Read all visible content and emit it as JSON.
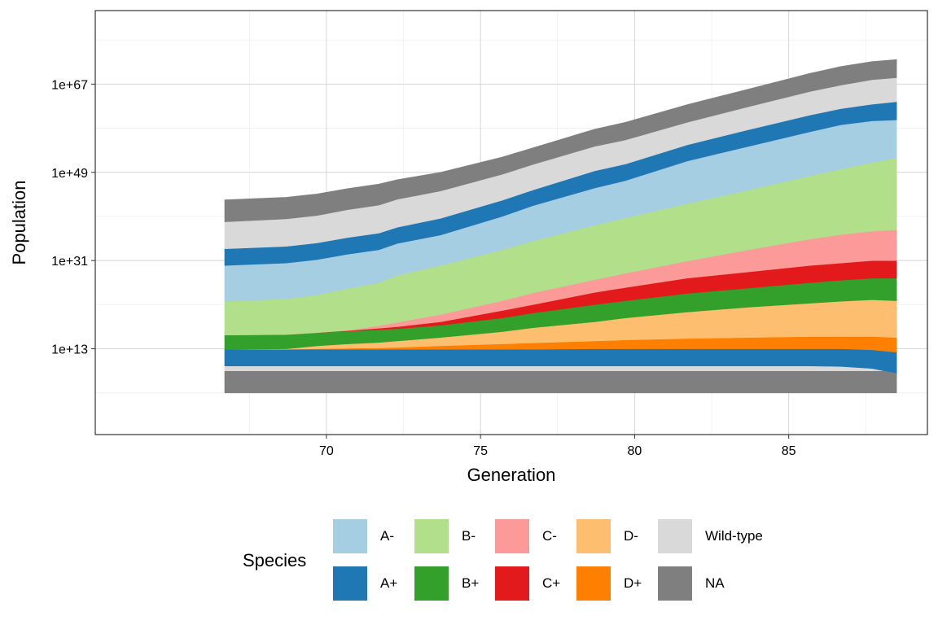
{
  "chart_data": {
    "type": "area",
    "stacked": true,
    "xlabel": "Generation",
    "ylabel": "Population",
    "x_ticks": [
      70,
      75,
      80,
      85
    ],
    "y_scale": "log10",
    "y_ticks": [
      "1e+13",
      "1e+31",
      "1e+49",
      "1e+67"
    ],
    "y_tick_exponents": [
      13,
      31,
      49,
      67
    ],
    "xlim": [
      62.5,
      89.5
    ],
    "ylim_log10": [
      -4.5,
      82
    ],
    "grid": true,
    "legend_title": "Species",
    "legend_position": "bottom",
    "x": [
      66.7,
      68.7,
      69.7,
      70.7,
      71.7,
      72.3,
      73.7,
      75.7,
      76.7,
      78.7,
      79.7,
      81.7,
      83.7,
      85.7,
      86.7,
      87.7,
      88.5
    ],
    "boundaries_log10": [
      {
        "from": "NA",
        "to": "Wild-type",
        "values": [
          8.5,
          8.5,
          8.5,
          8.5,
          8.5,
          8.5,
          8.5,
          8.5,
          8.5,
          8.5,
          8.5,
          8.5,
          8.5,
          8.5,
          8.5,
          8.5,
          8.5
        ]
      },
      {
        "from": "Wild-type",
        "to": "A+",
        "values": [
          9.5,
          9.5,
          9.5,
          9.5,
          9.5,
          9.5,
          9.5,
          9.5,
          9.5,
          9.5,
          9.5,
          9.5,
          9.5,
          9.5,
          9.4,
          9.0,
          8.0
        ]
      },
      {
        "from": "A+",
        "to": "D+",
        "values": [
          12.9,
          12.9,
          12.9,
          12.9,
          12.9,
          12.9,
          12.9,
          12.9,
          12.9,
          13.0,
          13.0,
          13.0,
          13.0,
          13.0,
          13.0,
          12.8,
          12.3
        ]
      },
      {
        "from": "D+",
        "to": "D-",
        "values": [
          12.9,
          12.9,
          13.0,
          13.1,
          13.2,
          13.3,
          13.6,
          14.0,
          14.2,
          14.6,
          14.8,
          15.1,
          15.3,
          15.5,
          15.5,
          15.5,
          15.3
        ]
      },
      {
        "from": "D-",
        "to": "B+",
        "values": [
          12.9,
          13.0,
          13.6,
          14.0,
          14.3,
          14.6,
          15.3,
          16.5,
          17.3,
          18.5,
          19.3,
          20.5,
          21.5,
          22.3,
          22.7,
          23.0,
          22.8
        ]
      },
      {
        "from": "B+",
        "to": "C+",
        "values": [
          15.8,
          15.9,
          16.3,
          16.6,
          16.9,
          17.1,
          17.8,
          19.3,
          20.3,
          22.0,
          22.8,
          24.3,
          25.4,
          26.5,
          27.0,
          27.4,
          27.4
        ]
      },
      {
        "from": "C+",
        "to": "C-",
        "values": [
          15.8,
          15.9,
          16.3,
          16.7,
          17.2,
          17.5,
          18.5,
          20.8,
          22.0,
          24.5,
          25.5,
          27.4,
          28.7,
          30.0,
          30.5,
          31.0,
          31.0
        ]
      },
      {
        "from": "C-",
        "to": "B-",
        "values": [
          15.8,
          15.9,
          16.3,
          16.8,
          17.7,
          18.4,
          20.0,
          22.8,
          24.4,
          27.1,
          28.4,
          30.9,
          33.2,
          35.4,
          36.3,
          37.0,
          37.3
        ]
      },
      {
        "from": "B-",
        "to": "A-",
        "values": [
          22.7,
          23.2,
          24.0,
          25.3,
          26.5,
          28.0,
          30.0,
          33.2,
          35.0,
          38.2,
          39.7,
          42.6,
          45.4,
          48.3,
          49.7,
          51.0,
          51.9
        ]
      },
      {
        "from": "A-",
        "to": "A+",
        "values": [
          30.0,
          30.5,
          31.2,
          32.3,
          33.2,
          34.5,
          36.2,
          40.0,
          42.2,
          45.8,
          47.3,
          51.3,
          54.3,
          57.3,
          58.7,
          59.5,
          59.7
        ]
      },
      {
        "from": "A+",
        "to": "Wild-type",
        "values": [
          33.4,
          33.9,
          34.6,
          35.7,
          36.6,
          37.8,
          39.6,
          43.3,
          45.4,
          49.3,
          50.7,
          54.6,
          57.7,
          60.7,
          62.0,
          62.9,
          63.4
        ]
      },
      {
        "from": "Wild-type",
        "to": "NA",
        "values": [
          38.9,
          39.5,
          40.2,
          41.4,
          42.3,
          43.5,
          45.2,
          48.6,
          50.6,
          54.3,
          55.6,
          59.2,
          62.4,
          65.5,
          66.8,
          67.9,
          68.3
        ]
      },
      {
        "from": "NA",
        "to": "top",
        "values": [
          43.4,
          43.9,
          44.6,
          45.7,
          46.6,
          47.5,
          49.0,
          52.1,
          54.0,
          57.8,
          59.2,
          62.8,
          66.0,
          69.2,
          70.6,
          71.6,
          72.0
        ]
      }
    ],
    "bottom_log10": [
      4.0,
      4.0,
      4.0,
      4.0,
      4.0,
      4.0,
      4.0,
      4.0,
      4.0,
      4.0,
      4.0,
      4.0,
      4.0,
      4.0,
      4.0,
      4.0,
      4.0
    ],
    "species": [
      {
        "name": "A-",
        "color": "#A6CEE3"
      },
      {
        "name": "A+",
        "color": "#1F78B4"
      },
      {
        "name": "B-",
        "color": "#B2DF8A"
      },
      {
        "name": "B+",
        "color": "#33A02C"
      },
      {
        "name": "C-",
        "color": "#FB9A99"
      },
      {
        "name": "C+",
        "color": "#E31A1C"
      },
      {
        "name": "D-",
        "color": "#FDBF6F"
      },
      {
        "name": "D+",
        "color": "#FF7F00"
      },
      {
        "name": "Wild-type",
        "color": "#D9D9D9"
      },
      {
        "name": "NA",
        "color": "#7F7F7F"
      }
    ]
  },
  "legend": {
    "title": "Species",
    "items": [
      {
        "label": "A-",
        "color": "#A6CEE3"
      },
      {
        "label": "A+",
        "color": "#1F78B4"
      },
      {
        "label": "B-",
        "color": "#B2DF8A"
      },
      {
        "label": "B+",
        "color": "#33A02C"
      },
      {
        "label": "C-",
        "color": "#FB9A99"
      },
      {
        "label": "C+",
        "color": "#E31A1C"
      },
      {
        "label": "D-",
        "color": "#FDBF6F"
      },
      {
        "label": "D+",
        "color": "#FF7F00"
      },
      {
        "label": "Wild-type",
        "color": "#D9D9D9"
      },
      {
        "label": "NA",
        "color": "#7F7F7F"
      }
    ]
  }
}
